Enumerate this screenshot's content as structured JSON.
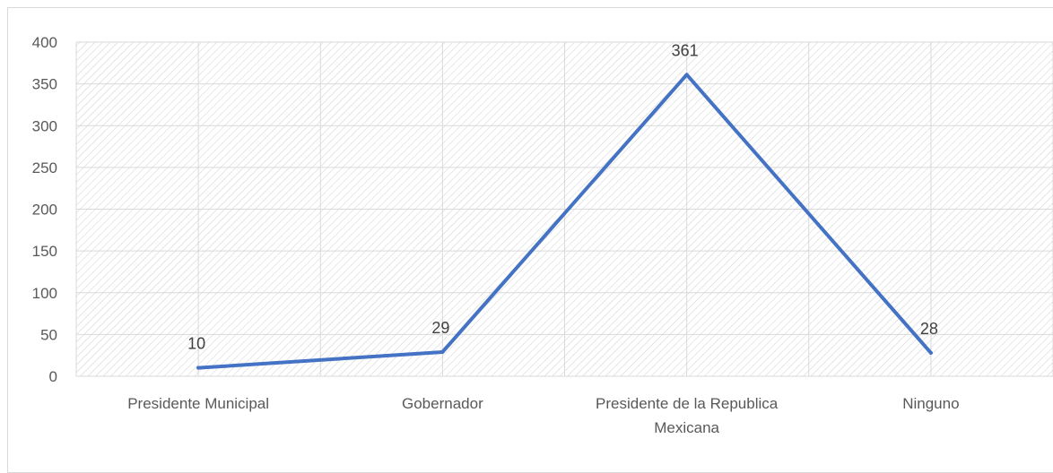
{
  "chart_data": {
    "type": "line",
    "categories": [
      [
        "Presidente Municipal"
      ],
      [
        "Gobernador"
      ],
      [
        "Presidente de la Republica",
        "Mexicana"
      ],
      [
        "Ninguno"
      ]
    ],
    "series": [
      {
        "values": [
          10,
          29,
          361,
          28
        ],
        "color": "#4472c4"
      }
    ],
    "data_labels": [
      "10",
      "29",
      "361",
      "28"
    ],
    "ylim": [
      0,
      400
    ],
    "yticks": [
      0,
      50,
      100,
      150,
      200,
      250,
      300,
      350,
      400
    ],
    "grid": true,
    "plot_pattern": "diagonal-hatch",
    "colors": {
      "line": "#4472c4",
      "grid": "#d9d9d9",
      "hatch": "#d0d0d0",
      "text": "#595959"
    }
  }
}
